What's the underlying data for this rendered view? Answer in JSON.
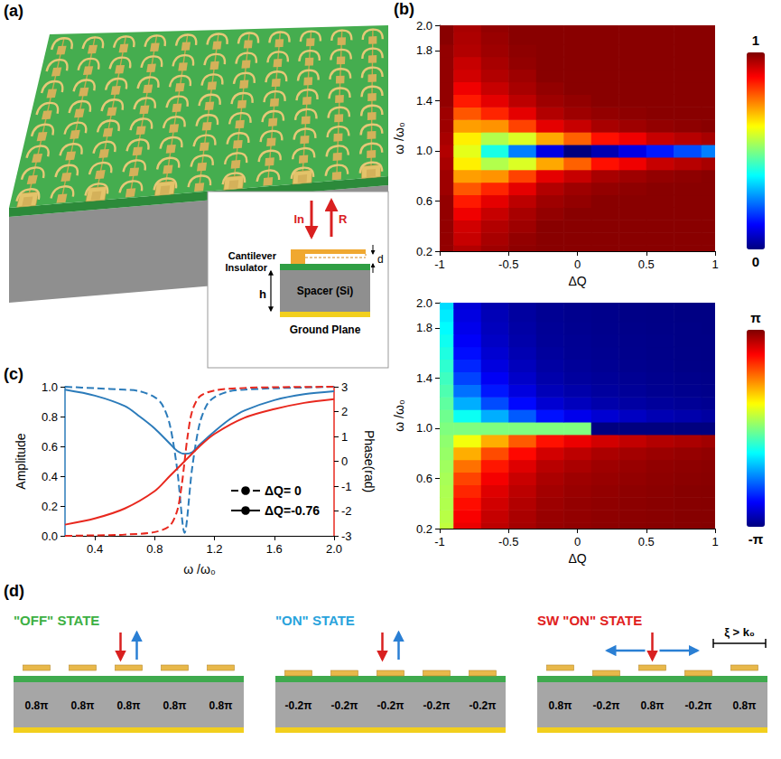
{
  "panel_labels": [
    "(a)",
    "(b)",
    "(c)",
    "(d)"
  ],
  "schematic": {
    "incident": "In",
    "reflected": "R",
    "cantilever": "Cantilever",
    "insulator": "Insulator",
    "spacer": "Spacer (Si)",
    "ground": "Ground Plane",
    "thickness": "h",
    "gap": "d"
  },
  "chart_data": [
    {
      "type": "heatmap",
      "x_label": "ΔQ",
      "y_label": "ω /ω₀",
      "x": [
        -1,
        -0.8,
        -0.6,
        -0.4,
        -0.2,
        0,
        0.2,
        0.4,
        0.6,
        0.8,
        1
      ],
      "y": [
        0.2,
        0.3,
        0.4,
        0.5,
        0.6,
        0.7,
        0.8,
        0.9,
        1.0,
        1.1,
        1.2,
        1.3,
        1.4,
        1.5,
        1.6,
        1.7,
        1.8,
        1.9,
        2.0
      ],
      "values": [
        [
          0.98,
          0.95,
          0.97,
          0.985,
          0.99,
          0.99,
          0.99,
          0.99,
          0.99,
          0.99,
          0.99
        ],
        [
          0.98,
          0.93,
          0.96,
          0.98,
          0.99,
          0.99,
          0.99,
          0.99,
          0.99,
          0.99,
          0.99
        ],
        [
          0.98,
          0.92,
          0.95,
          0.97,
          0.99,
          0.99,
          0.99,
          0.99,
          0.99,
          0.99,
          0.99
        ],
        [
          0.98,
          0.89,
          0.93,
          0.96,
          0.98,
          0.99,
          0.99,
          0.99,
          0.99,
          0.99,
          0.99
        ],
        [
          0.98,
          0.85,
          0.9,
          0.94,
          0.97,
          0.98,
          0.99,
          0.99,
          0.99,
          0.99,
          0.99
        ],
        [
          0.97,
          0.79,
          0.84,
          0.9,
          0.95,
          0.97,
          0.98,
          0.985,
          0.99,
          0.99,
          0.99
        ],
        [
          0.97,
          0.72,
          0.73,
          0.81,
          0.9,
          0.93,
          0.96,
          0.97,
          0.98,
          0.985,
          0.99
        ],
        [
          0.96,
          0.64,
          0.55,
          0.59,
          0.71,
          0.78,
          0.86,
          0.89,
          0.93,
          0.945,
          0.96
        ],
        [
          0.95,
          0.6,
          0.4,
          0.25,
          0.1,
          0,
          0.05,
          0.1,
          0.15,
          0.2,
          0.25
        ],
        [
          0.96,
          0.64,
          0.55,
          0.59,
          0.71,
          0.78,
          0.86,
          0.89,
          0.93,
          0.945,
          0.96
        ],
        [
          0.97,
          0.72,
          0.73,
          0.81,
          0.9,
          0.93,
          0.96,
          0.97,
          0.98,
          0.985,
          0.99
        ],
        [
          0.97,
          0.79,
          0.84,
          0.9,
          0.95,
          0.97,
          0.98,
          0.985,
          0.99,
          0.99,
          0.99
        ],
        [
          0.98,
          0.85,
          0.9,
          0.94,
          0.97,
          0.98,
          0.99,
          0.99,
          0.99,
          0.99,
          0.99
        ],
        [
          0.98,
          0.89,
          0.93,
          0.96,
          0.98,
          0.99,
          0.99,
          0.99,
          0.99,
          0.99,
          0.99
        ],
        [
          0.98,
          0.92,
          0.95,
          0.97,
          0.99,
          0.99,
          0.99,
          0.99,
          0.99,
          0.99,
          0.99
        ],
        [
          0.98,
          0.93,
          0.96,
          0.98,
          0.99,
          0.99,
          0.99,
          0.99,
          0.99,
          0.99,
          0.99
        ],
        [
          0.98,
          0.95,
          0.97,
          0.985,
          0.99,
          0.99,
          0.99,
          0.99,
          0.99,
          0.99,
          0.99
        ],
        [
          0.99,
          0.955,
          0.975,
          0.99,
          0.99,
          0.99,
          0.99,
          0.99,
          0.99,
          0.99,
          0.99
        ],
        [
          0.99,
          0.96,
          0.98,
          0.99,
          0.99,
          0.99,
          0.99,
          0.99,
          0.99,
          0.99,
          0.99
        ]
      ],
      "xlim": [
        -1,
        1
      ],
      "xticks": [
        -1,
        -0.5,
        0,
        0.5,
        1
      ],
      "ylim": [
        0.2,
        2
      ],
      "yticks": [
        0.2,
        0.6,
        {
          "value": 1,
          "label": "1.0"
        },
        1.4,
        1.8,
        {
          "value": 2,
          "label": "2.0"
        }
      ],
      "colorbar": {
        "range": [
          0,
          1
        ],
        "ticks": [
          0,
          1
        ]
      },
      "highlight": [
        -0.85,
        -0.8
      ]
    },
    {
      "type": "heatmap",
      "x_label": "ΔQ",
      "y_label": "ω /ω₀",
      "x": [
        -1,
        -0.8,
        -0.6,
        -0.4,
        -0.2,
        0,
        0.2,
        0.4,
        0.6,
        0.8,
        1
      ],
      "y": [
        0.2,
        0.3,
        0.4,
        0.5,
        0.6,
        0.7,
        0.8,
        0.9,
        1.0,
        1.1,
        1.2,
        1.3,
        1.4,
        1.5,
        1.6,
        1.7,
        1.8,
        1.9,
        2.0
      ],
      "values": [
        [
          0.4,
          2.47,
          2.76,
          2.91,
          3.0,
          3.04,
          3.06,
          3.08,
          3.09,
          3.1,
          3.11
        ],
        [
          0.35,
          2.39,
          2.71,
          2.88,
          2.99,
          3.02,
          3.05,
          3.07,
          3.08,
          3.1,
          3.1
        ],
        [
          0.3,
          2.28,
          2.64,
          2.83,
          2.96,
          3.01,
          3.04,
          3.06,
          3.08,
          3.09,
          3.1
        ],
        [
          0.28,
          2.13,
          2.55,
          2.77,
          2.92,
          2.98,
          3.02,
          3.05,
          3.07,
          3.09,
          3.1
        ],
        [
          0.25,
          1.94,
          2.42,
          2.69,
          2.87,
          2.95,
          2.99,
          3.02,
          3.05,
          3.07,
          3.08
        ],
        [
          0.2,
          1.66,
          2.22,
          2.55,
          2.79,
          2.88,
          2.95,
          2.99,
          3.03,
          3.05,
          3.07
        ],
        [
          0.15,
          1.28,
          1.89,
          2.31,
          2.63,
          2.76,
          2.87,
          2.92,
          2.97,
          3.0,
          3.03
        ],
        [
          0.1,
          0.72,
          1.28,
          1.8,
          2.26,
          2.47,
          2.63,
          2.73,
          2.82,
          2.87,
          2.93
        ],
        [
          0,
          0,
          0,
          0,
          0,
          0,
          -3.14,
          -3.14,
          -3.14,
          -3.14,
          -3.14
        ],
        [
          -0.1,
          -0.72,
          -1.28,
          -1.8,
          -2.26,
          -2.47,
          -2.63,
          -2.73,
          -2.82,
          -2.87,
          -2.93
        ],
        [
          -0.2,
          -1.28,
          -1.89,
          -2.31,
          -2.63,
          -2.76,
          -2.87,
          -2.92,
          -2.97,
          -3.0,
          -3.03
        ],
        [
          -0.3,
          -1.66,
          -2.22,
          -2.55,
          -2.79,
          -2.88,
          -2.95,
          -2.99,
          -3.03,
          -3.05,
          -3.07
        ],
        [
          -0.4,
          -1.94,
          -2.42,
          -2.69,
          -2.87,
          -2.95,
          -2.99,
          -3.02,
          -3.05,
          -3.07,
          -3.08
        ],
        [
          -0.5,
          -2.13,
          -2.55,
          -2.77,
          -2.92,
          -2.98,
          -3.02,
          -3.05,
          -3.07,
          -3.09,
          -3.1
        ],
        [
          -0.6,
          -2.28,
          -2.64,
          -2.83,
          -2.96,
          -3.01,
          -3.04,
          -3.06,
          -3.08,
          -3.09,
          -3.1
        ],
        [
          -0.7,
          -2.39,
          -2.71,
          -2.88,
          -2.99,
          -3.02,
          -3.05,
          -3.07,
          -3.08,
          -3.1,
          -3.1
        ],
        [
          -0.8,
          -2.47,
          -2.76,
          -2.91,
          -3.0,
          -3.04,
          -3.06,
          -3.08,
          -3.09,
          -3.1,
          -3.11
        ],
        [
          -0.9,
          -2.54,
          -2.8,
          -2.94,
          -3.02,
          -3.05,
          -3.07,
          -3.09,
          -3.1,
          -3.11,
          -3.11
        ],
        [
          -1.0,
          -2.6,
          -2.84,
          -2.96,
          -3.03,
          -3.06,
          -3.08,
          -3.1,
          -3.11,
          -3.12,
          -3.12
        ]
      ],
      "xlim": [
        -1,
        1
      ],
      "xticks": [
        -1,
        -0.5,
        0,
        0.5,
        1
      ],
      "ylim": [
        0.2,
        2
      ],
      "yticks": [
        0.2,
        0.6,
        {
          "value": 1,
          "label": "1.0"
        },
        1.4,
        1.8,
        {
          "value": 2,
          "label": "2.0"
        }
      ],
      "colorbar": {
        "range": [
          -3.14159,
          3.14159
        ],
        "ticks": [
          {
            "value": -3.14159,
            "label": "-π"
          },
          {
            "value": 3.14159,
            "label": "π"
          }
        ]
      },
      "highlight": [
        -0.85,
        -0.8
      ]
    },
    {
      "type": "line",
      "x_label": "ω /ω₀",
      "y_label": "Amplitude",
      "y2_label": "Phase(rad)",
      "xlim": [
        0.2,
        2
      ],
      "xticks": [
        0.4,
        0.8,
        1.2,
        1.6,
        {
          "value": 2,
          "label": "2.0"
        }
      ],
      "ylim": [
        0,
        1
      ],
      "yticks": [
        {
          "value": 0,
          "label": "0.0"
        },
        0.2,
        0.4,
        0.6,
        0.8,
        {
          "value": 1,
          "label": "1.0"
        }
      ],
      "y2lim": [
        -3,
        3
      ],
      "y2ticks": [
        -3,
        -2,
        -1,
        0,
        1,
        2,
        3
      ],
      "legend": "lower right",
      "series": [
        {
          "name": "ΔQ= 0",
          "color": "#2b7bba",
          "line_style": "dashed",
          "axis": "y",
          "x": [
            0.2,
            0.4,
            0.6,
            0.7,
            0.8,
            0.85,
            0.9,
            0.95,
            1.0,
            1.05,
            1.1,
            1.15,
            1.2,
            1.3,
            1.4,
            1.6,
            1.8,
            2.0
          ],
          "values": [
            1.0,
            0.99,
            0.98,
            0.97,
            0.93,
            0.88,
            0.75,
            0.45,
            0.02,
            0.45,
            0.75,
            0.88,
            0.93,
            0.97,
            0.98,
            0.99,
            0.995,
            1.0
          ]
        },
        {
          "name": "ΔQ=-0.76",
          "color": "#2b7bba",
          "line_style": "solid",
          "axis": "y",
          "x": [
            0.2,
            0.4,
            0.6,
            0.7,
            0.8,
            0.9,
            0.95,
            1.0,
            1.05,
            1.1,
            1.2,
            1.3,
            1.4,
            1.6,
            1.8,
            2.0
          ],
          "values": [
            0.98,
            0.94,
            0.87,
            0.8,
            0.72,
            0.62,
            0.57,
            0.55,
            0.56,
            0.61,
            0.7,
            0.78,
            0.84,
            0.91,
            0.95,
            0.97
          ]
        },
        {
          "name": "ΔQ= 0",
          "color": "#e8281e",
          "line_style": "dashed",
          "axis": "y2",
          "x": [
            0.2,
            0.4,
            0.6,
            0.8,
            0.9,
            0.95,
            0.98,
            1.0,
            1.02,
            1.05,
            1.1,
            1.2,
            1.4,
            1.6,
            2.0
          ],
          "values": [
            -3.0,
            -2.98,
            -2.95,
            -2.85,
            -2.6,
            -2.0,
            -1.0,
            0,
            1.0,
            2.0,
            2.6,
            2.85,
            2.95,
            2.98,
            3.0
          ]
        },
        {
          "name": "ΔQ=-0.76",
          "color": "#e8281e",
          "line_style": "solid",
          "axis": "y2",
          "x": [
            0.2,
            0.4,
            0.6,
            0.8,
            0.9,
            1.0,
            1.1,
            1.2,
            1.4,
            1.6,
            1.8,
            2.0
          ],
          "values": [
            -2.55,
            -2.3,
            -1.9,
            -1.2,
            -0.6,
            0,
            0.6,
            1.1,
            1.75,
            2.1,
            2.35,
            2.5
          ]
        }
      ]
    }
  ],
  "states": [
    {
      "title": "\"OFF\" STATE",
      "color": "#3cb043",
      "phases": [
        "0.8π",
        "0.8π",
        "0.8π",
        "0.8π",
        "0.8π"
      ]
    },
    {
      "title": "\"ON\" STATE",
      "color": "#29a3dc",
      "phases": [
        "-0.2π",
        "-0.2π",
        "-0.2π",
        "-0.2π",
        "-0.2π"
      ]
    },
    {
      "title": "SW \"ON\" STATE",
      "color": "#e02020",
      "phases": [
        "0.8π",
        "-0.2π",
        "0.8π",
        "-0.2π",
        "0.8π"
      ],
      "period_label": "ξ > k₀"
    }
  ]
}
